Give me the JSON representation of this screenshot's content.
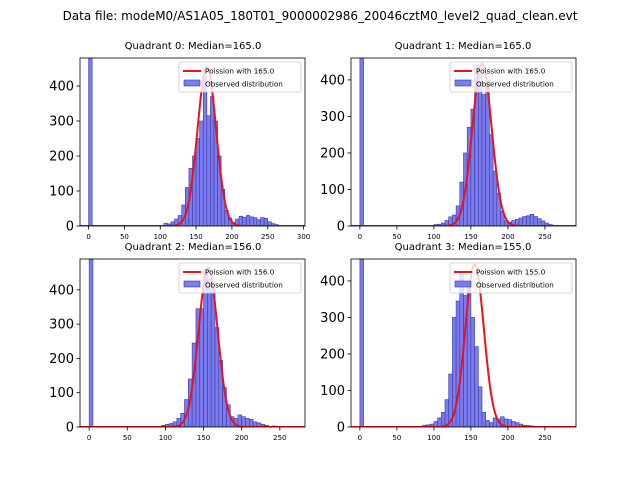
{
  "figure": {
    "suptitle": "Data file: modeM0/AS1A05_180T01_9000002986_20046cztM0_level2_quad_clean.evt"
  },
  "chart_data": [
    {
      "type": "bar",
      "title": "Quadrant 0: Median=165.0",
      "median": 165.0,
      "sigma": 13.0,
      "peak": 455,
      "xlim": [
        -12,
        302
      ],
      "ylim": [
        0,
        480
      ],
      "xticks": [
        0,
        50,
        100,
        150,
        200,
        250,
        300
      ],
      "yticks": [
        0,
        100,
        200,
        300,
        400
      ],
      "bin_width": 5,
      "zero_bin_height": 480,
      "bins": [
        [
          105,
          8
        ],
        [
          110,
          6
        ],
        [
          115,
          12
        ],
        [
          120,
          20
        ],
        [
          125,
          30
        ],
        [
          130,
          60
        ],
        [
          135,
          110
        ],
        [
          140,
          165
        ],
        [
          145,
          200
        ],
        [
          150,
          250
        ],
        [
          155,
          300
        ],
        [
          160,
          430
        ],
        [
          165,
          315
        ],
        [
          170,
          370
        ],
        [
          175,
          300
        ],
        [
          180,
          200
        ],
        [
          185,
          105
        ],
        [
          190,
          45
        ],
        [
          195,
          22
        ],
        [
          200,
          10
        ],
        [
          205,
          20
        ],
        [
          210,
          28
        ],
        [
          215,
          25
        ],
        [
          220,
          30
        ],
        [
          225,
          26
        ],
        [
          230,
          24
        ],
        [
          235,
          18
        ],
        [
          240,
          24
        ],
        [
          245,
          22
        ],
        [
          250,
          12
        ],
        [
          255,
          7
        ],
        [
          260,
          4
        ],
        [
          270,
          2
        ],
        [
          280,
          1
        ]
      ],
      "legend": [
        "Poission with 165.0",
        "Observed distribution"
      ]
    },
    {
      "type": "bar",
      "title": "Quadrant 1: Median=165.0",
      "median": 165.0,
      "sigma": 13.0,
      "peak": 445,
      "xlim": [
        -12,
        292
      ],
      "ylim": [
        0,
        460
      ],
      "xticks": [
        0,
        50,
        100,
        150,
        200,
        250
      ],
      "yticks": [
        0,
        100,
        200,
        300,
        400
      ],
      "bin_width": 5,
      "zero_bin_height": 460,
      "bins": [
        [
          100,
          4
        ],
        [
          105,
          5
        ],
        [
          110,
          8
        ],
        [
          115,
          15
        ],
        [
          120,
          25
        ],
        [
          125,
          30
        ],
        [
          130,
          55
        ],
        [
          135,
          120
        ],
        [
          140,
          200
        ],
        [
          145,
          270
        ],
        [
          150,
          320
        ],
        [
          155,
          440
        ],
        [
          160,
          415
        ],
        [
          165,
          360
        ],
        [
          170,
          400
        ],
        [
          175,
          250
        ],
        [
          180,
          150
        ],
        [
          185,
          90
        ],
        [
          190,
          40
        ],
        [
          195,
          15
        ],
        [
          200,
          10
        ],
        [
          205,
          15
        ],
        [
          210,
          18
        ],
        [
          215,
          22
        ],
        [
          220,
          26
        ],
        [
          225,
          28
        ],
        [
          230,
          32
        ],
        [
          235,
          26
        ],
        [
          240,
          20
        ],
        [
          245,
          14
        ],
        [
          250,
          8
        ],
        [
          255,
          4
        ],
        [
          260,
          2
        ],
        [
          270,
          1
        ]
      ],
      "legend": [
        "Poission with 165.0",
        "Observed distribution"
      ]
    },
    {
      "type": "bar",
      "title": "Quadrant 2: Median=156.0",
      "median": 156.0,
      "sigma": 12.5,
      "peak": 465,
      "xlim": [
        -12,
        283
      ],
      "ylim": [
        0,
        490
      ],
      "xticks": [
        0,
        50,
        100,
        150,
        200,
        250
      ],
      "yticks": [
        0,
        100,
        200,
        300,
        400
      ],
      "bin_width": 5,
      "zero_bin_height": 490,
      "bins": [
        [
          95,
          5
        ],
        [
          100,
          8
        ],
        [
          105,
          10
        ],
        [
          110,
          15
        ],
        [
          115,
          25
        ],
        [
          120,
          40
        ],
        [
          125,
          80
        ],
        [
          130,
          140
        ],
        [
          135,
          245
        ],
        [
          140,
          345
        ],
        [
          145,
          345
        ],
        [
          150,
          460
        ],
        [
          155,
          430
        ],
        [
          160,
          395
        ],
        [
          165,
          290
        ],
        [
          170,
          195
        ],
        [
          175,
          115
        ],
        [
          180,
          65
        ],
        [
          185,
          30
        ],
        [
          190,
          25
        ],
        [
          195,
          35
        ],
        [
          200,
          30
        ],
        [
          205,
          25
        ],
        [
          210,
          22
        ],
        [
          215,
          15
        ],
        [
          220,
          12
        ],
        [
          225,
          8
        ],
        [
          230,
          5
        ],
        [
          240,
          3
        ],
        [
          250,
          2
        ]
      ],
      "legend": [
        "Poission with 156.0",
        "Observed distribution"
      ]
    },
    {
      "type": "bar",
      "title": "Quadrant 3: Median=155.0",
      "median": 155.0,
      "sigma": 12.5,
      "peak": 445,
      "xlim": [
        -12,
        292
      ],
      "ylim": [
        0,
        460
      ],
      "xticks": [
        0,
        50,
        100,
        150,
        200,
        250
      ],
      "yticks": [
        0,
        100,
        200,
        300,
        400
      ],
      "bin_width": 5,
      "zero_bin_height": 460,
      "bins": [
        [
          85,
          5
        ],
        [
          90,
          6
        ],
        [
          95,
          8
        ],
        [
          100,
          15
        ],
        [
          105,
          25
        ],
        [
          110,
          40
        ],
        [
          115,
          75
        ],
        [
          120,
          145
        ],
        [
          125,
          300
        ],
        [
          130,
          345
        ],
        [
          135,
          420
        ],
        [
          140,
          360
        ],
        [
          145,
          395
        ],
        [
          150,
          300
        ],
        [
          155,
          220
        ],
        [
          160,
          110
        ],
        [
          165,
          40
        ],
        [
          170,
          18
        ],
        [
          175,
          12
        ],
        [
          180,
          25
        ],
        [
          185,
          22
        ],
        [
          190,
          28
        ],
        [
          195,
          22
        ],
        [
          200,
          20
        ],
        [
          205,
          15
        ],
        [
          210,
          12
        ],
        [
          215,
          8
        ],
        [
          220,
          5
        ],
        [
          225,
          4
        ],
        [
          230,
          3
        ]
      ],
      "legend": [
        "Poission with 155.0",
        "Observed distribution"
      ]
    }
  ]
}
